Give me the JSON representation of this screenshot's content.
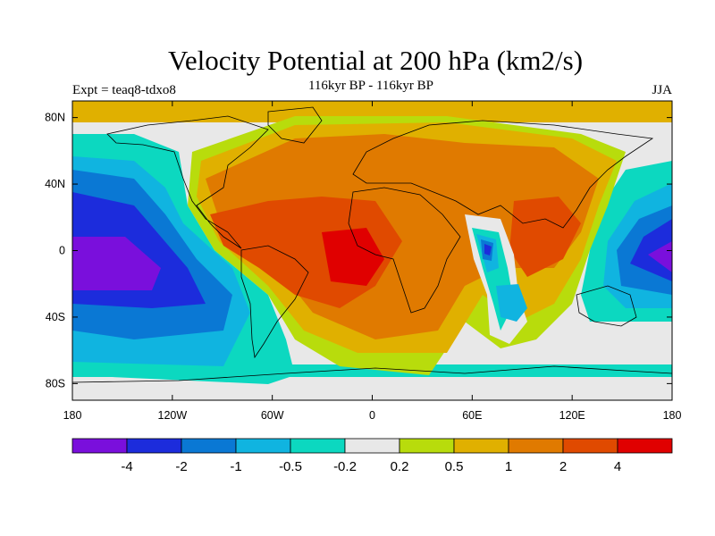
{
  "header": {
    "title": "Velocity Potential at 200 hPa (km2/s)",
    "subtitle": "116kyr BP - 116kyr BP",
    "left_label": "Expt = teaq8-tdxo8",
    "right_label": "JJA"
  },
  "map": {
    "projection": "cylindrical equidistant",
    "lon_range": [
      -180,
      180
    ],
    "lat_range": [
      -90,
      90
    ],
    "lat_ticks": [
      {
        "value": 80,
        "label": "80N"
      },
      {
        "value": 40,
        "label": "40N"
      },
      {
        "value": 0,
        "label": "0"
      },
      {
        "value": -40,
        "label": "40S"
      },
      {
        "value": -80,
        "label": "80S"
      }
    ],
    "lon_ticks": [
      {
        "value": -180,
        "label": "180"
      },
      {
        "value": -120,
        "label": "120W"
      },
      {
        "value": -60,
        "label": "60W"
      },
      {
        "value": 0,
        "label": "0"
      },
      {
        "value": 60,
        "label": "60E"
      },
      {
        "value": 120,
        "label": "120E"
      },
      {
        "value": 180,
        "label": "180"
      }
    ]
  },
  "colorbar": {
    "colors": [
      "#7a0fdc",
      "#1c2cdc",
      "#0a78d4",
      "#10b4e0",
      "#0cd8c0",
      "#e8e8e8",
      "#b8dc0c",
      "#e0b000",
      "#e07a00",
      "#e04a00",
      "#e00000"
    ],
    "labels": [
      "-4",
      "-2",
      "-1",
      "-0.5",
      "-0.2",
      "0.2",
      "0.5",
      "1",
      "2",
      "4"
    ]
  }
}
